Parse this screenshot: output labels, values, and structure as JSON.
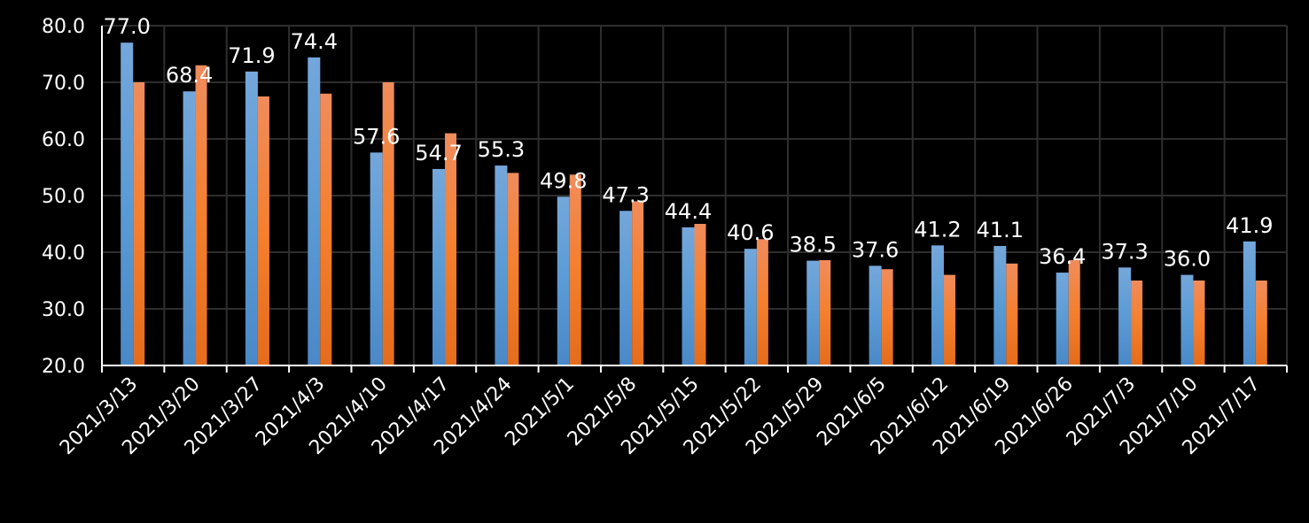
{
  "chart_data": {
    "type": "bar",
    "title": "",
    "xlabel": "",
    "ylabel": "",
    "ylim": [
      20,
      80
    ],
    "yticks": [
      "20.0",
      "30.0",
      "40.0",
      "50.0",
      "60.0",
      "70.0",
      "80.0"
    ],
    "grid": true,
    "legend": "none",
    "categories": [
      "2021/3/13",
      "2021/3/20",
      "2021/3/27",
      "2021/4/3",
      "2021/4/10",
      "2021/4/17",
      "2021/4/24",
      "2021/5/1",
      "2021/5/8",
      "2021/5/15",
      "2021/5/22",
      "2021/5/29",
      "2021/6/5",
      "2021/6/12",
      "2021/6/19",
      "2021/6/26",
      "2021/7/3",
      "2021/7/10",
      "2021/7/17"
    ],
    "series": [
      {
        "color": "#5b9bd5",
        "show_labels": true,
        "values": [
          77.0,
          68.4,
          71.9,
          74.4,
          57.6,
          54.7,
          55.3,
          49.8,
          47.3,
          44.4,
          40.6,
          38.5,
          37.6,
          41.2,
          41.1,
          36.4,
          37.3,
          36.0,
          41.9
        ]
      },
      {
        "color": "#ed7d31",
        "show_labels": false,
        "values": [
          70.0,
          73.0,
          67.5,
          68.0,
          70.0,
          61.0,
          54.0,
          53.7,
          49.0,
          45.0,
          42.3,
          38.6,
          37.0,
          36.0,
          38.0,
          38.6,
          35.0,
          35.0,
          35.0
        ]
      }
    ]
  }
}
